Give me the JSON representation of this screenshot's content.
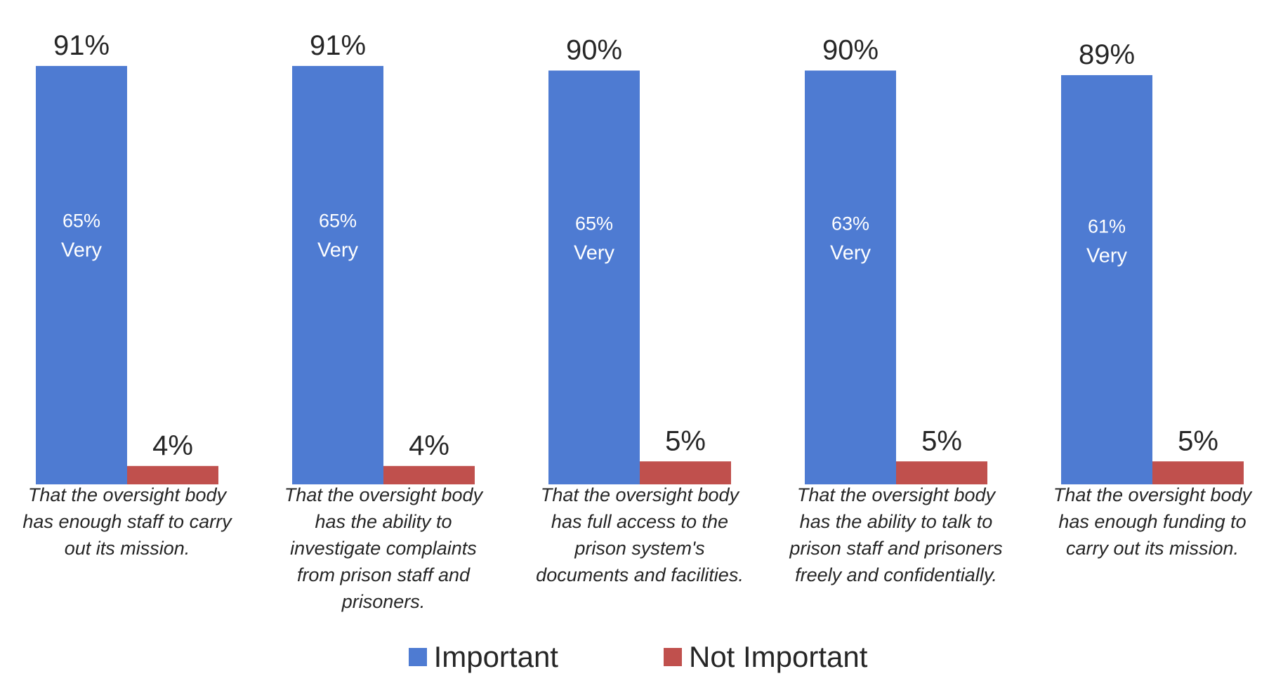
{
  "colors": {
    "important": "#4e7bd2",
    "not_important": "#c0504d",
    "text": "#262626",
    "inner_text": "#ffffff"
  },
  "chart_data": {
    "type": "bar",
    "title": "",
    "xlabel": "",
    "ylabel": "",
    "ylim": [
      0,
      100
    ],
    "grid": false,
    "legend_position": "bottom",
    "categories": [
      "That the oversight body has enough staff to carry out its mission.",
      "That the oversight body has the ability to investigate complaints from prison staff and prisoners.",
      "That the oversight body has full access to the prison system's documents and facilities.",
      "That the oversight body has the ability to talk to prison staff and prisoners freely and confidentially.",
      "That the oversight body has enough funding to carry out its mission."
    ],
    "category_lines": [
      [
        "That the oversight body",
        "has enough staff to carry",
        "out its mission."
      ],
      [
        "That the oversight body",
        "has the ability to",
        "investigate complaints",
        "from prison staff and",
        "prisoners."
      ],
      [
        "That the oversight body",
        "has full access to the",
        "prison system's",
        "documents and facilities."
      ],
      [
        "That the oversight body",
        "has the ability to talk to",
        "prison staff and prisoners",
        "freely and confidentially."
      ],
      [
        "That the oversight body",
        "has enough funding to",
        "carry out its mission."
      ]
    ],
    "series": [
      {
        "name": "Important",
        "values": [
          91,
          91,
          90,
          90,
          89
        ],
        "labels": [
          "91%",
          "91%",
          "90%",
          "90%",
          "89%"
        ]
      },
      {
        "name": "Not Important",
        "values": [
          4,
          4,
          5,
          5,
          5
        ],
        "labels": [
          "4%",
          "4%",
          "5%",
          "5%",
          "5%"
        ]
      }
    ],
    "inner_labels": [
      {
        "value": "65%",
        "word": "Very"
      },
      {
        "value": "65%",
        "word": "Very"
      },
      {
        "value": "65%",
        "word": "Very"
      },
      {
        "value": "63%",
        "word": "Very"
      },
      {
        "value": "61%",
        "word": "Very"
      }
    ]
  },
  "legend": {
    "items": [
      {
        "label": "Important"
      },
      {
        "label": "Not Important"
      }
    ]
  }
}
